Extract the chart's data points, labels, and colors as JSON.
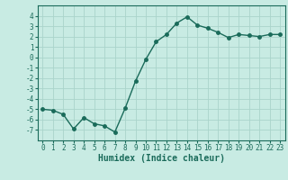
{
  "x": [
    0,
    1,
    2,
    3,
    4,
    5,
    6,
    7,
    8,
    9,
    10,
    11,
    12,
    13,
    14,
    15,
    16,
    17,
    18,
    19,
    20,
    21,
    22,
    23
  ],
  "y": [
    -5.0,
    -5.1,
    -5.5,
    -6.9,
    -5.8,
    -6.4,
    -6.6,
    -7.2,
    -4.9,
    -2.3,
    -0.2,
    1.5,
    2.2,
    3.3,
    3.9,
    3.1,
    2.8,
    2.4,
    1.9,
    2.2,
    2.1,
    2.0,
    2.2,
    2.2
  ],
  "line_color": "#1a6b5a",
  "marker": "o",
  "marker_size": 2.5,
  "bg_color": "#c8ebe3",
  "grid_color": "#aad4cb",
  "xlabel": "Humidex (Indice chaleur)",
  "ylim": [
    -8,
    5
  ],
  "xlim": [
    -0.5,
    23.5
  ],
  "yticks": [
    -7,
    -6,
    -5,
    -4,
    -3,
    -2,
    -1,
    0,
    1,
    2,
    3,
    4
  ],
  "xticks": [
    0,
    1,
    2,
    3,
    4,
    5,
    6,
    7,
    8,
    9,
    10,
    11,
    12,
    13,
    14,
    15,
    16,
    17,
    18,
    19,
    20,
    21,
    22,
    23
  ],
  "tick_fontsize": 5.5,
  "xlabel_fontsize": 7.0,
  "line_width": 1.0
}
